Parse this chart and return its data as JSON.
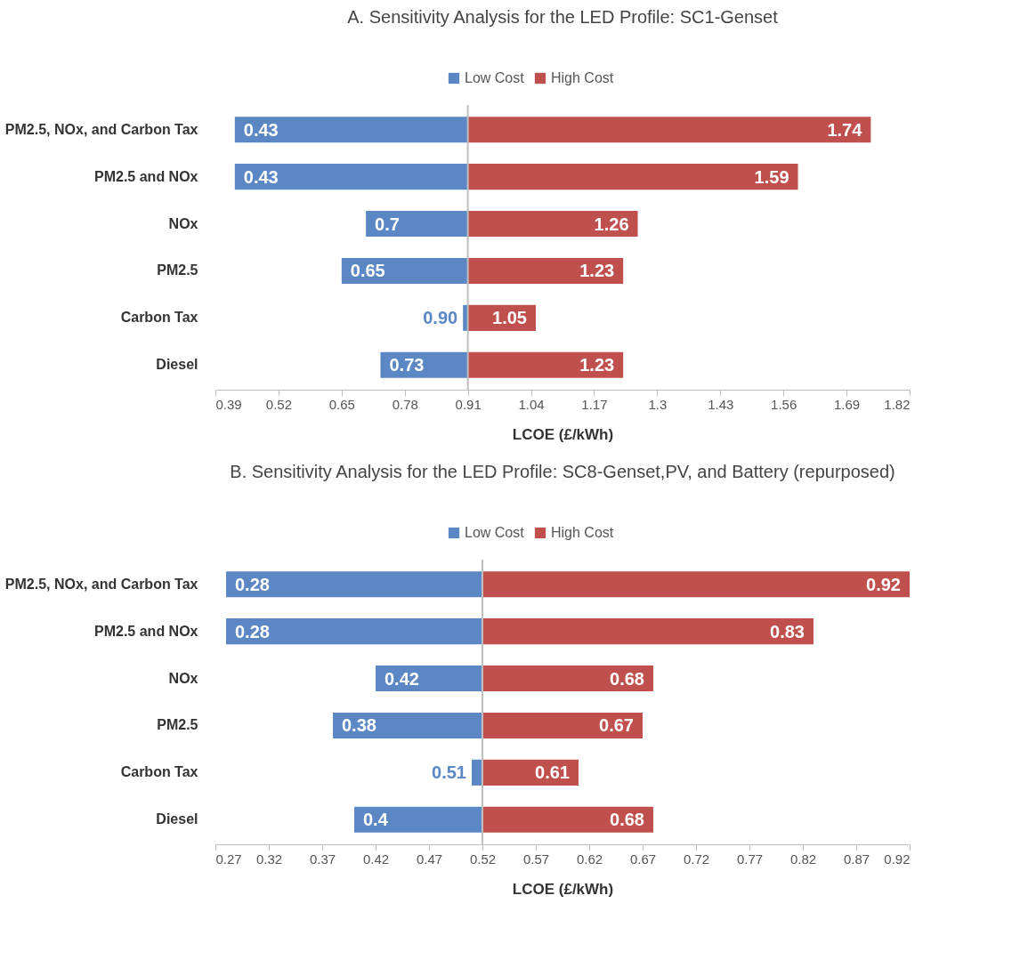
{
  "chart_data": [
    {
      "type": "bar",
      "orientation": "horizontal",
      "title": "A. Sensitivity Analysis for the LED Profile: SC1-Genset",
      "xlabel": "LCOE  (£/kWh)",
      "legend": "top",
      "grid": false,
      "categories": [
        "PM2.5, NOx, and Carbon Tax",
        "PM2.5 and NOx",
        "NOx",
        "PM2.5",
        "Carbon Tax",
        "Diesel"
      ],
      "series": [
        {
          "name": "Low Cost",
          "color": "#5b87c5",
          "base": [
            0.91,
            0.91,
            0.91,
            0.91,
            0.91,
            0.91
          ],
          "values": [
            -0.48,
            -0.48,
            -0.21,
            -0.26,
            -0.01,
            -0.18
          ],
          "value_labels": [
            "0.43",
            "0.43",
            "0.7",
            "0.65",
            "0.90",
            "0.73"
          ]
        },
        {
          "name": "High Cost",
          "color": "#c0504d",
          "base": [
            0.91,
            0.91,
            0.91,
            0.91,
            0.91,
            0.91
          ],
          "values": [
            0.83,
            0.68,
            0.35,
            0.32,
            0.14,
            0.32
          ],
          "value_labels": [
            "1.74",
            "1.59",
            "1.26",
            "1.23",
            "1.05",
            "1.23"
          ]
        }
      ],
      "xlim": [
        0.39,
        1.82
      ],
      "xticks": [
        0.39,
        0.52,
        0.65,
        0.78,
        0.91,
        1.04,
        1.17,
        1.3,
        1.43,
        1.56,
        1.69,
        1.82
      ],
      "ref_lines": [
        {
          "axis": "x",
          "value": 0.91,
          "color": "#bfbfbf"
        }
      ]
    },
    {
      "type": "bar",
      "orientation": "horizontal",
      "title": "B. Sensitivity Analysis for the LED Profile: SC8-Genset,PV, and Battery (repurposed)",
      "xlabel": "LCOE  (£/kWh)",
      "legend": "top",
      "grid": false,
      "categories": [
        "PM2.5, NOx, and Carbon Tax",
        "PM2.5 and NOx",
        "NOx",
        "PM2.5",
        "Carbon Tax",
        "Diesel"
      ],
      "series": [
        {
          "name": "Low Cost",
          "color": "#5b87c5",
          "base": [
            0.52,
            0.52,
            0.52,
            0.52,
            0.52,
            0.52
          ],
          "values": [
            -0.24,
            -0.24,
            -0.1,
            -0.14,
            -0.01,
            -0.12
          ],
          "value_labels": [
            "0.28",
            "0.28",
            "0.42",
            "0.38",
            "0.51",
            "0.4"
          ]
        },
        {
          "name": "High Cost",
          "color": "#c0504d",
          "base": [
            0.52,
            0.52,
            0.52,
            0.52,
            0.52,
            0.52
          ],
          "values": [
            0.4,
            0.31,
            0.16,
            0.15,
            0.09,
            0.16
          ],
          "value_labels": [
            "0.92",
            "0.83",
            "0.68",
            "0.67",
            "0.61",
            "0.68"
          ]
        }
      ],
      "xlim": [
        0.27,
        0.92
      ],
      "xticks": [
        0.27,
        0.32,
        0.37,
        0.42,
        0.47,
        0.52,
        0.57,
        0.62,
        0.67,
        0.72,
        0.77,
        0.82,
        0.87,
        0.92
      ],
      "ref_lines": [
        {
          "axis": "x",
          "value": 0.52,
          "color": "#bfbfbf"
        }
      ]
    }
  ]
}
